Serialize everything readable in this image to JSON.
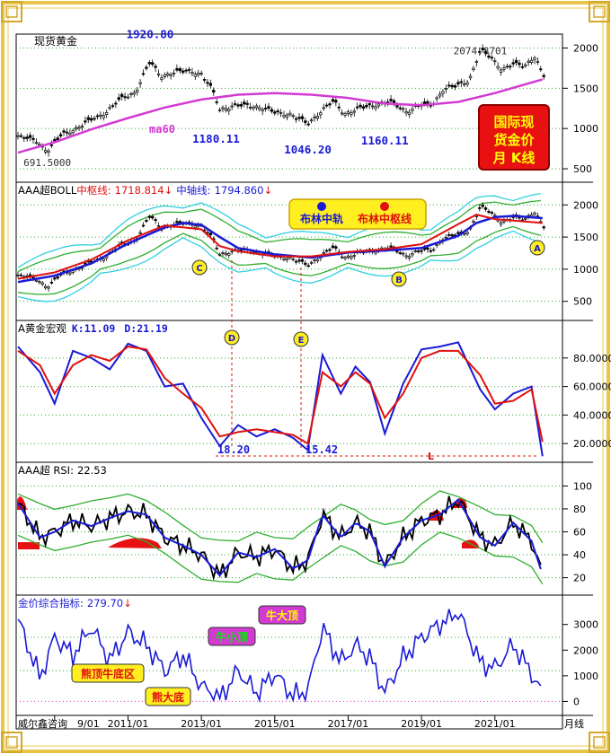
{
  "colors": {
    "frame": "#e8c64a",
    "grid": "#2eab2e",
    "blue": "#1a1ad6",
    "red": "#e01010",
    "magenta": "#d23ad2",
    "green": "#2fae2f",
    "cyan": "#30d0e0",
    "black": "#000000",
    "red_fill": "#e81010"
  },
  "watermark": "威尔鑫咨询",
  "x_axis": {
    "labels": [
      "9/01",
      "2011/01",
      "2013/01",
      "2015/01",
      "2017/01",
      "2019/01",
      "2021/01"
    ],
    "period_label": "月线"
  },
  "panel1": {
    "title": "现货黄金",
    "badge": "国际现货金价月 K线",
    "badge_lines": [
      "国际现",
      "货金价",
      "月  K线"
    ],
    "ma_label": "ma60",
    "annotations": [
      {
        "text": "1920.80",
        "x": 2011.6,
        "y": 1920.8
      },
      {
        "text": "1180.11",
        "x": 2013.4,
        "y": 1180.11
      },
      {
        "text": "1046.20",
        "x": 2015.9,
        "y": 1046.2
      },
      {
        "text": "1160.11",
        "x": 2018.0,
        "y": 1160.11
      },
      {
        "text": "691.5000",
        "x": 2008.8,
        "y": 691.5
      },
      {
        "text": "2074.8701",
        "x": 2020.6,
        "y": 2074.87
      }
    ],
    "y_ticks": [
      "2000",
      "1500",
      "1000",
      "500"
    ]
  },
  "panel2": {
    "title_prefix": "AAA超BOLL",
    "mid_label": "中枢线:",
    "mid_value": "1718.814",
    "axis_label": "中轴线:",
    "axis_value": "1794.860",
    "legend": [
      "布林中轨",
      "布林中枢线"
    ],
    "markers": [
      "A",
      "B",
      "C"
    ],
    "y_ticks": [
      "2000",
      "1500",
      "1000",
      "500"
    ]
  },
  "panel3": {
    "title": "A黄金宏观",
    "k_label": "K:11.09",
    "d_label": "D:21.19",
    "annotations": [
      "18.20",
      "15.42"
    ],
    "markers": [
      "D",
      "E"
    ],
    "line_label": "L",
    "y_ticks": [
      "80.0000",
      "60.0000",
      "40.0000",
      "20.0000"
    ]
  },
  "panel4": {
    "title": "AAA超 RSI:",
    "value": "22.53",
    "y_ticks": [
      "100",
      "80",
      "60",
      "40",
      "20"
    ]
  },
  "panel5": {
    "title": "金价综合指标:",
    "value": "279.70",
    "labels": [
      "牛大顶",
      "牛小顶",
      "熊顶牛底区",
      "熊大底"
    ],
    "y_ticks": [
      "3000",
      "2000",
      "1000",
      "0"
    ]
  },
  "chart_data": {
    "type": "line",
    "x_unit": "year",
    "x_range": [
      2008.0,
      2022.5
    ],
    "price": {
      "name": "现货黄金",
      "x": [
        2008.0,
        2008.5,
        2008.8,
        2009.2,
        2009.6,
        2010.0,
        2010.4,
        2010.8,
        2011.2,
        2011.6,
        2011.9,
        2012.3,
        2012.7,
        2013.0,
        2013.3,
        2013.5,
        2013.9,
        2014.3,
        2014.7,
        2015.0,
        2015.4,
        2015.9,
        2016.3,
        2016.6,
        2016.9,
        2017.3,
        2017.7,
        2018.1,
        2018.6,
        2018.9,
        2019.3,
        2019.6,
        2019.9,
        2020.3,
        2020.6,
        2020.9,
        2021.2,
        2021.5,
        2021.8,
        2022.1,
        2022.3
      ],
      "y": [
        900,
        850,
        720,
        930,
        1000,
        1110,
        1200,
        1370,
        1450,
        1830,
        1650,
        1700,
        1720,
        1670,
        1480,
        1240,
        1280,
        1290,
        1250,
        1200,
        1180,
        1060,
        1230,
        1340,
        1180,
        1250,
        1290,
        1340,
        1210,
        1280,
        1300,
        1490,
        1520,
        1600,
        1970,
        1880,
        1730,
        1800,
        1780,
        1900,
        1650
      ]
    },
    "ma60": {
      "name": "ma60",
      "x": [
        2008.0,
        2009.0,
        2010.0,
        2011.0,
        2012.0,
        2013.0,
        2014.0,
        2015.0,
        2016.0,
        2017.0,
        2018.0,
        2019.0,
        2020.0,
        2021.0,
        2022.3
      ],
      "y": [
        700,
        830,
        990,
        1130,
        1260,
        1360,
        1420,
        1440,
        1420,
        1380,
        1310,
        1290,
        1330,
        1440,
        1610
      ]
    },
    "boll_mid": {
      "x": [
        2008.0,
        2009.0,
        2010.0,
        2011.0,
        2012.0,
        2012.5,
        2013.0,
        2013.5,
        2014.0,
        2015.0,
        2016.0,
        2017.0,
        2018.0,
        2019.0,
        2020.0,
        2020.5,
        2021.0,
        2021.5,
        2022.3
      ],
      "y": [
        800,
        900,
        1090,
        1400,
        1650,
        1720,
        1690,
        1500,
        1330,
        1230,
        1180,
        1260,
        1290,
        1330,
        1520,
        1720,
        1810,
        1830,
        1795
      ]
    },
    "boll_center": {
      "x": [
        2008.0,
        2009.0,
        2010.0,
        2011.0,
        2012.0,
        2013.0,
        2013.5,
        2014.0,
        2015.0,
        2016.0,
        2017.0,
        2018.0,
        2019.0,
        2020.0,
        2020.5,
        2021.0,
        2022.3
      ],
      "y": [
        850,
        950,
        1150,
        1450,
        1680,
        1620,
        1360,
        1280,
        1200,
        1200,
        1270,
        1310,
        1390,
        1700,
        1850,
        1780,
        1720
      ]
    },
    "kd": {
      "x": [
        2008.0,
        2008.6,
        2009.0,
        2009.5,
        2010.0,
        2010.5,
        2011.0,
        2011.5,
        2012.0,
        2012.5,
        2013.0,
        2013.5,
        2014.0,
        2014.5,
        2015.0,
        2015.5,
        2015.9,
        2016.3,
        2016.8,
        2017.2,
        2017.6,
        2018.0,
        2018.5,
        2019.0,
        2019.5,
        2020.0,
        2020.6,
        2021.0,
        2021.5,
        2022.0,
        2022.3
      ],
      "k": [
        88,
        70,
        48,
        85,
        80,
        72,
        90,
        85,
        60,
        62,
        38,
        18.2,
        33,
        25,
        30,
        24,
        15.42,
        82,
        55,
        74,
        63,
        27,
        62,
        86,
        88,
        91,
        58,
        44,
        55,
        60,
        11.09
      ],
      "d": [
        85,
        75,
        55,
        75,
        82,
        78,
        88,
        86,
        66,
        55,
        45,
        25,
        28,
        30,
        28,
        26,
        20,
        70,
        60,
        70,
        62,
        38,
        55,
        80,
        85,
        85,
        68,
        48,
        50,
        58,
        21.19
      ]
    },
    "rsi": {
      "x": [
        2008.0,
        2008.6,
        2009.0,
        2009.5,
        2010.0,
        2010.5,
        2011.0,
        2011.5,
        2012.0,
        2012.5,
        2013.0,
        2013.5,
        2014.0,
        2014.5,
        2015.0,
        2015.5,
        2015.9,
        2016.3,
        2016.8,
        2017.2,
        2017.6,
        2018.0,
        2018.5,
        2019.0,
        2019.5,
        2020.0,
        2020.6,
        2021.0,
        2021.5,
        2022.0,
        2022.3
      ],
      "y": [
        85,
        55,
        60,
        70,
        65,
        72,
        78,
        75,
        55,
        48,
        40,
        22,
        42,
        38,
        45,
        28,
        35,
        75,
        55,
        68,
        60,
        30,
        55,
        70,
        75,
        88,
        55,
        48,
        68,
        52,
        22.53
      ]
    },
    "composite": {
      "x": [
        2008.0,
        2008.6,
        2009.0,
        2009.5,
        2010.0,
        2010.5,
        2011.0,
        2011.5,
        2012.0,
        2012.5,
        2013.0,
        2013.5,
        2014.0,
        2014.5,
        2015.0,
        2015.5,
        2015.9,
        2016.3,
        2016.8,
        2017.2,
        2017.6,
        2018.0,
        2018.5,
        2019.0,
        2019.5,
        2020.0,
        2020.6,
        2021.0,
        2021.5,
        2022.0,
        2022.3
      ],
      "y": [
        3200,
        900,
        2500,
        1800,
        2900,
        1600,
        2700,
        2200,
        1200,
        1800,
        600,
        100,
        1200,
        300,
        1100,
        200,
        400,
        2900,
        1500,
        2200,
        1700,
        350,
        1700,
        2500,
        3000,
        3500,
        1500,
        1300,
        2200,
        1100,
        279.7
      ]
    }
  }
}
